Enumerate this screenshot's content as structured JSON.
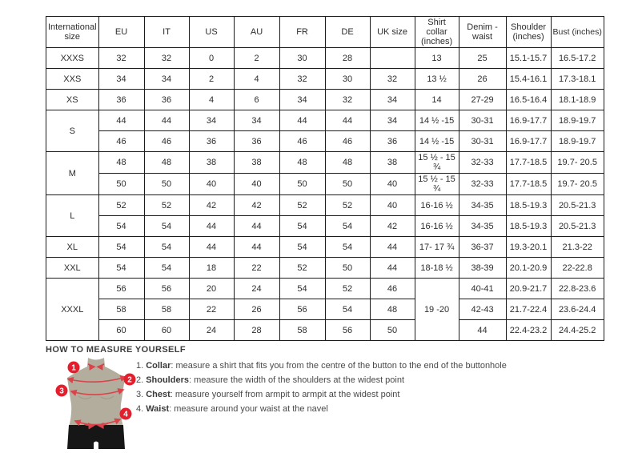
{
  "size_chart": {
    "columns": [
      "International size",
      "EU",
      "IT",
      "US",
      "AU",
      "FR",
      "DE",
      "UK size",
      "Shirt collar (inches)",
      "Denim - waist",
      "Shoulder (inches)",
      "Bust (inches)"
    ],
    "rows": [
      [
        {
          "t": "XXXS"
        },
        {
          "t": "32"
        },
        {
          "t": "32"
        },
        {
          "t": "0"
        },
        {
          "t": "2"
        },
        {
          "t": "30"
        },
        {
          "t": "28"
        },
        {
          "t": ""
        },
        {
          "t": "13"
        },
        {
          "t": "25"
        },
        {
          "t": "15.1-15.7"
        },
        {
          "t": "16.5-17.2"
        }
      ],
      [
        {
          "t": "XXS"
        },
        {
          "t": "34"
        },
        {
          "t": "34"
        },
        {
          "t": "2"
        },
        {
          "t": "4"
        },
        {
          "t": "32"
        },
        {
          "t": "30"
        },
        {
          "t": "32"
        },
        {
          "t": "13 ½"
        },
        {
          "t": "26"
        },
        {
          "t": "15.4-16.1"
        },
        {
          "t": "17.3-18.1"
        }
      ],
      [
        {
          "t": "XS"
        },
        {
          "t": "36"
        },
        {
          "t": "36"
        },
        {
          "t": "4"
        },
        {
          "t": "6"
        },
        {
          "t": "34"
        },
        {
          "t": "32"
        },
        {
          "t": "34"
        },
        {
          "t": "14"
        },
        {
          "t": "27-29"
        },
        {
          "t": "16.5-16.4"
        },
        {
          "t": "18.1-18.9"
        }
      ],
      [
        {
          "t": "S",
          "rs": 2
        },
        {
          "t": "44"
        },
        {
          "t": "44"
        },
        {
          "t": "34"
        },
        {
          "t": "34"
        },
        {
          "t": "44"
        },
        {
          "t": "44"
        },
        {
          "t": "34"
        },
        {
          "t": "14 ½ -15"
        },
        {
          "t": "30-31"
        },
        {
          "t": "16.9-17.7"
        },
        {
          "t": "18.9-19.7"
        }
      ],
      [
        {
          "t": "46"
        },
        {
          "t": "46"
        },
        {
          "t": "36"
        },
        {
          "t": "36"
        },
        {
          "t": "46"
        },
        {
          "t": "46"
        },
        {
          "t": "36"
        },
        {
          "t": "14 ½ -15"
        },
        {
          "t": "30-31"
        },
        {
          "t": "16.9-17.7"
        },
        {
          "t": "18.9-19.7"
        }
      ],
      [
        {
          "t": "M",
          "rs": 2
        },
        {
          "t": "48"
        },
        {
          "t": "48"
        },
        {
          "t": "38"
        },
        {
          "t": "38"
        },
        {
          "t": "48"
        },
        {
          "t": "48"
        },
        {
          "t": "38"
        },
        {
          "t": "15 ½ - 15 ¾"
        },
        {
          "t": "32-33"
        },
        {
          "t": "17.7-18.5"
        },
        {
          "t": "19.7- 20.5"
        }
      ],
      [
        {
          "t": "50"
        },
        {
          "t": "50"
        },
        {
          "t": "40"
        },
        {
          "t": "40"
        },
        {
          "t": "50"
        },
        {
          "t": "50"
        },
        {
          "t": "40"
        },
        {
          "t": "15 ½ - 15 ¾"
        },
        {
          "t": "32-33"
        },
        {
          "t": "17.7-18.5"
        },
        {
          "t": "19.7- 20.5"
        }
      ],
      [
        {
          "t": "L",
          "rs": 2
        },
        {
          "t": "52"
        },
        {
          "t": "52"
        },
        {
          "t": "42"
        },
        {
          "t": "42"
        },
        {
          "t": "52"
        },
        {
          "t": "52"
        },
        {
          "t": "40"
        },
        {
          "t": "16-16 ½"
        },
        {
          "t": "34-35"
        },
        {
          "t": "18.5-19.3"
        },
        {
          "t": "20.5-21.3"
        }
      ],
      [
        {
          "t": "54"
        },
        {
          "t": "54"
        },
        {
          "t": "44"
        },
        {
          "t": "44"
        },
        {
          "t": "54"
        },
        {
          "t": "54"
        },
        {
          "t": "42"
        },
        {
          "t": "16-16 ½"
        },
        {
          "t": "34-35"
        },
        {
          "t": "18.5-19.3"
        },
        {
          "t": "20.5-21.3"
        }
      ],
      [
        {
          "t": "XL"
        },
        {
          "t": "54"
        },
        {
          "t": "54"
        },
        {
          "t": "44"
        },
        {
          "t": "44"
        },
        {
          "t": "54"
        },
        {
          "t": "54"
        },
        {
          "t": "44"
        },
        {
          "t": "17- 17 ¾"
        },
        {
          "t": "36-37"
        },
        {
          "t": "19.3-20.1"
        },
        {
          "t": "21.3-22"
        }
      ],
      [
        {
          "t": "XXL"
        },
        {
          "t": "54"
        },
        {
          "t": "54"
        },
        {
          "t": "18"
        },
        {
          "t": "22"
        },
        {
          "t": "52"
        },
        {
          "t": "50"
        },
        {
          "t": "44"
        },
        {
          "t": "18-18 ½"
        },
        {
          "t": "38-39"
        },
        {
          "t": "20.1-20.9"
        },
        {
          "t": "22-22.8"
        }
      ],
      [
        {
          "t": "XXXL",
          "rs": 3
        },
        {
          "t": "56"
        },
        {
          "t": "56"
        },
        {
          "t": "20"
        },
        {
          "t": "24"
        },
        {
          "t": "54"
        },
        {
          "t": "52"
        },
        {
          "t": "46"
        },
        {
          "t": "19 -20",
          "rs": 3
        },
        {
          "t": "40-41"
        },
        {
          "t": "20.9-21.7"
        },
        {
          "t": "22.8-23.6"
        }
      ],
      [
        {
          "t": "58"
        },
        {
          "t": "58"
        },
        {
          "t": "22"
        },
        {
          "t": "26"
        },
        {
          "t": "56"
        },
        {
          "t": "54"
        },
        {
          "t": "48"
        },
        {
          "t": "42-43"
        },
        {
          "t": "21.7-22.4"
        },
        {
          "t": "23.6-24.4"
        }
      ],
      [
        {
          "t": "60"
        },
        {
          "t": "60"
        },
        {
          "t": "24"
        },
        {
          "t": "28"
        },
        {
          "t": "58"
        },
        {
          "t": "56"
        },
        {
          "t": "50"
        },
        {
          "t": "44"
        },
        {
          "t": "22.4-23.2"
        },
        {
          "t": "24.4-25.2"
        }
      ]
    ]
  },
  "measure": {
    "heading": "HOW TO MEASURE YOURSELF",
    "steps": [
      {
        "badge": "1",
        "prefix": "1.",
        "term": "Collar",
        "text": ": measure a shirt that fits you from the centre of the button to the end of the buttonhole"
      },
      {
        "badge": "2",
        "prefix": "2.",
        "term": "Shoulders",
        "text": ": measure the width of the shoulders at the widest point"
      },
      {
        "badge": "3",
        "prefix": "3.",
        "term": "Chest",
        "text": ": measure yourself from armpit to armpit at the widest point"
      },
      {
        "badge": "4",
        "prefix": "4.",
        "term": "Waist",
        "text": ": measure around your waist at the navel"
      }
    ]
  },
  "colors": {
    "accent_red": "#e41e2d",
    "arrow_red": "#d9444c",
    "torso_beige": "#b2ad9c",
    "shorts_black": "#161616",
    "table_border": "#1c1c1c"
  }
}
